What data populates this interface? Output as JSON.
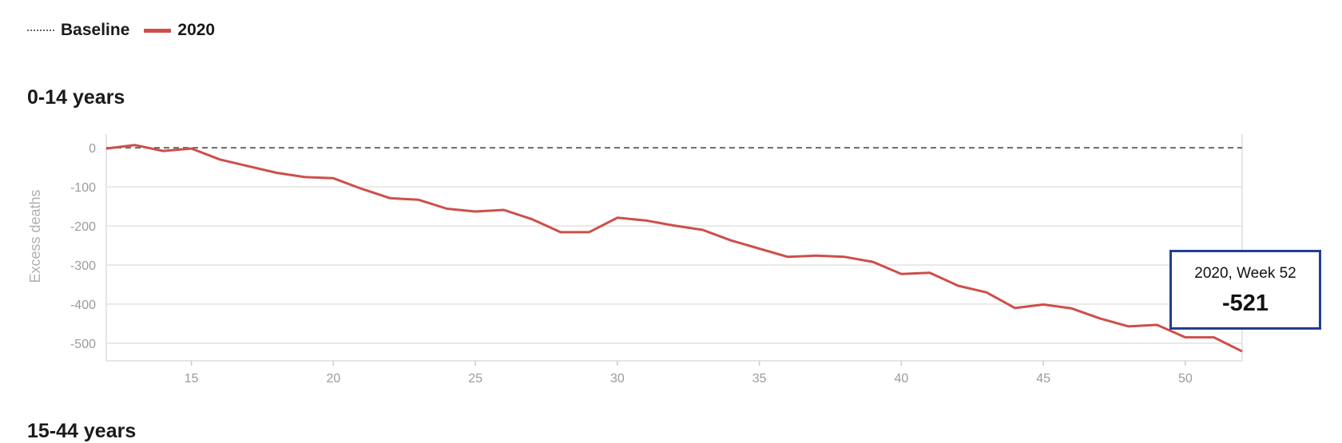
{
  "legend": {
    "items": [
      {
        "label": "Baseline",
        "style": "dotted",
        "color": "#666666"
      },
      {
        "label": "2020",
        "style": "solid",
        "color": "#cd4f4a"
      }
    ]
  },
  "panels": {
    "first_title": "0-14 years",
    "next_title": "15-44 years"
  },
  "tooltip": {
    "title": "2020, Week 52",
    "value": "-521"
  },
  "chart_data": {
    "type": "line",
    "title": "0-14 years",
    "xlabel": "",
    "ylabel": "Excess deaths",
    "xlim": [
      12,
      52
    ],
    "ylim": [
      -545,
      35
    ],
    "x_ticks": [
      15,
      20,
      25,
      30,
      35,
      40,
      45,
      50
    ],
    "y_ticks": [
      0,
      -100,
      -200,
      -300,
      -400,
      -500
    ],
    "baseline": 0,
    "grid": true,
    "legend_position": "top-left",
    "series": [
      {
        "name": "2020",
        "color": "#cd4f4a",
        "x": [
          12,
          13,
          14,
          15,
          16,
          17,
          18,
          19,
          20,
          21,
          22,
          23,
          24,
          25,
          26,
          27,
          28,
          29,
          30,
          31,
          32,
          33,
          34,
          35,
          36,
          37,
          38,
          39,
          40,
          41,
          42,
          43,
          44,
          45,
          46,
          47,
          48,
          49,
          50,
          51,
          52
        ],
        "y": [
          -2,
          7,
          -8,
          -2,
          -30,
          -47,
          -64,
          -75,
          -78,
          -105,
          -129,
          -133,
          -156,
          -163,
          -159,
          -183,
          -216,
          -216,
          -179,
          -186,
          -199,
          -210,
          -237,
          -258,
          -279,
          -276,
          -279,
          -292,
          -323,
          -320,
          -353,
          -370,
          -410,
          -401,
          -411,
          -437,
          -457,
          -453,
          -485,
          -485,
          -521
        ]
      }
    ]
  }
}
